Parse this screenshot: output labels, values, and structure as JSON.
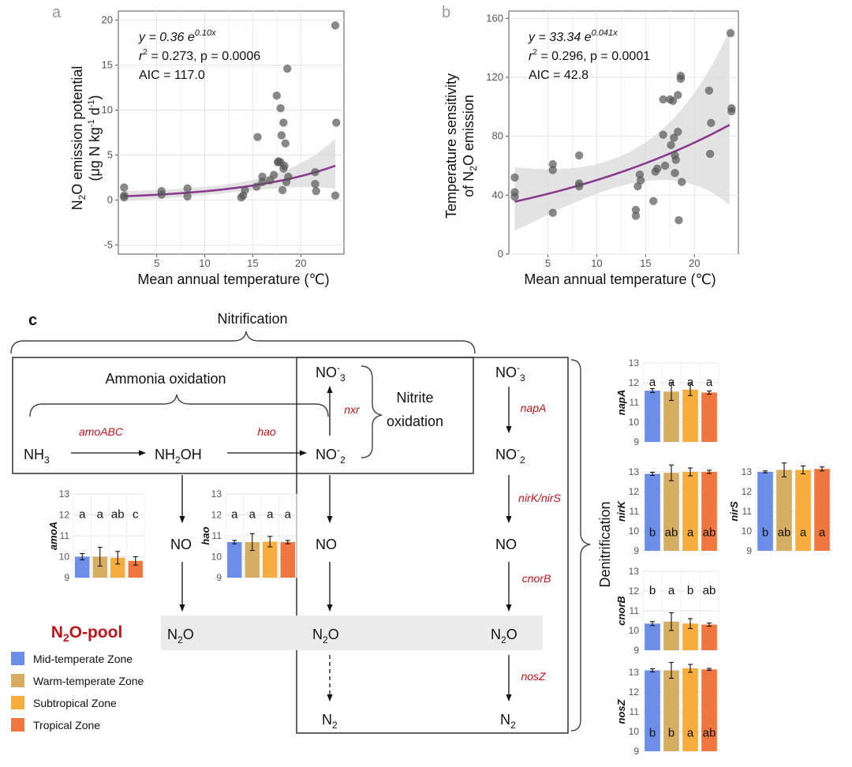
{
  "colors": {
    "mid": "#6c8ee8",
    "warm": "#d7ad63",
    "sub": "#f6ad3e",
    "trop": "#f0763f",
    "fit_line": "#8a3b8f",
    "gene_red": "#c0141c",
    "pool_title": "#c0141c",
    "band": "#ebebeb"
  },
  "panel_a": {
    "letter": "a",
    "eq_y": "y = 0.36 e",
    "eq_exp": "0.10x",
    "eq_r2": "r",
    "eq_r2_rest": " = 0.273, p = 0.0006",
    "aic": "AIC = 117.0"
  },
  "panel_b": {
    "letter": "b",
    "eq_y": "y = 33.34 e",
    "eq_exp": "0.041x",
    "eq_r2": "r",
    "eq_r2_rest": " = 0.296, p = 0.0001",
    "aic": "AIC = 42.8"
  },
  "chart_data": [
    {
      "type": "scatter",
      "panel": "a",
      "xlabel": "Mean annual temperature (℃)",
      "ylabel": "N2O emission potential (μg N kg-1 d-1)",
      "xlim": [
        1,
        24.5
      ],
      "ylim": [
        -6,
        21
      ],
      "xticks": [
        5,
        10,
        15,
        20
      ],
      "yticks": [
        -5,
        0,
        5,
        10,
        15,
        20
      ],
      "points": [
        [
          1.6,
          0.5
        ],
        [
          1.6,
          0.3
        ],
        [
          1.6,
          1.4
        ],
        [
          5.5,
          0.6
        ],
        [
          5.5,
          1.0
        ],
        [
          8.2,
          0.4
        ],
        [
          8.2,
          1.3
        ],
        [
          13.8,
          0.3
        ],
        [
          14.0,
          0.5
        ],
        [
          14.2,
          1.1
        ],
        [
          15.4,
          1.5
        ],
        [
          15.5,
          7.0
        ],
        [
          16.0,
          2.0
        ],
        [
          16.0,
          2.6
        ],
        [
          16.8,
          2.2
        ],
        [
          17.2,
          2.8
        ],
        [
          17.5,
          11.6
        ],
        [
          17.6,
          4.2
        ],
        [
          17.7,
          4.3
        ],
        [
          17.9,
          4.2
        ],
        [
          17.9,
          10.2
        ],
        [
          18.0,
          7.2
        ],
        [
          18.1,
          1.1
        ],
        [
          18.2,
          3.5
        ],
        [
          18.2,
          8.6
        ],
        [
          18.3,
          3.8
        ],
        [
          18.4,
          6.3
        ],
        [
          18.5,
          2.0
        ],
        [
          18.6,
          14.6
        ],
        [
          18.7,
          2.6
        ],
        [
          21.5,
          3.1
        ],
        [
          21.5,
          1.8
        ],
        [
          21.6,
          1.0
        ],
        [
          23.6,
          19.4
        ],
        [
          23.7,
          8.6
        ],
        [
          23.6,
          0.5
        ]
      ],
      "fit": {
        "a": 0.36,
        "b": 0.1
      }
    },
    {
      "type": "scatter",
      "panel": "b",
      "xlabel": "Mean annual temperature (℃)",
      "ylabel": "Temperature sensitivity of N2O emission",
      "xlim": [
        1,
        24.5
      ],
      "ylim": [
        0,
        165
      ],
      "xticks": [
        5,
        10,
        15,
        20
      ],
      "yticks": [
        0,
        40,
        80,
        120,
        160
      ],
      "points": [
        [
          1.6,
          52
        ],
        [
          1.6,
          42
        ],
        [
          1.6,
          39
        ],
        [
          5.5,
          61
        ],
        [
          5.5,
          57
        ],
        [
          5.5,
          28
        ],
        [
          8.2,
          67
        ],
        [
          8.2,
          48
        ],
        [
          8.2,
          46
        ],
        [
          14.0,
          30
        ],
        [
          14.0,
          26
        ],
        [
          14.2,
          46
        ],
        [
          14.4,
          54
        ],
        [
          14.5,
          50
        ],
        [
          15.8,
          36
        ],
        [
          16.0,
          56
        ],
        [
          16.2,
          58
        ],
        [
          16.8,
          105
        ],
        [
          16.8,
          81
        ],
        [
          17.0,
          60
        ],
        [
          17.5,
          105
        ],
        [
          17.6,
          74
        ],
        [
          17.8,
          104
        ],
        [
          17.9,
          79
        ],
        [
          18.0,
          67
        ],
        [
          18.0,
          55
        ],
        [
          18.1,
          64
        ],
        [
          18.3,
          108
        ],
        [
          18.3,
          83
        ],
        [
          18.4,
          23
        ],
        [
          18.6,
          121
        ],
        [
          18.6,
          119
        ],
        [
          18.7,
          49
        ],
        [
          21.5,
          111
        ],
        [
          21.6,
          68
        ],
        [
          21.7,
          89
        ],
        [
          23.7,
          150
        ],
        [
          23.8,
          99
        ],
        [
          23.8,
          97
        ]
      ],
      "fit": {
        "a": 33.34,
        "b": 0.041
      }
    },
    {
      "type": "bar",
      "gene": "amoA",
      "ylim": [
        9,
        13
      ],
      "series": [
        "Mid-temperate Zone",
        "Warm-temperate Zone",
        "Subtropical Zone",
        "Tropical Zone"
      ],
      "values": [
        10.0,
        10.0,
        9.95,
        9.8
      ],
      "errors": [
        0.15,
        0.45,
        0.3,
        0.2
      ],
      "letters": [
        "a",
        "a",
        "ab",
        "c"
      ],
      "letter_pos": "top"
    },
    {
      "type": "bar",
      "gene": "hao",
      "ylim": [
        9,
        13
      ],
      "series": [
        "Mid-temperate Zone",
        "Warm-temperate Zone",
        "Subtropical Zone",
        "Tropical Zone"
      ],
      "values": [
        10.7,
        10.7,
        10.72,
        10.7
      ],
      "errors": [
        0.08,
        0.4,
        0.25,
        0.08
      ],
      "letters": [
        "a",
        "a",
        "a",
        "a"
      ],
      "letter_pos": "top"
    },
    {
      "type": "bar",
      "gene": "napA",
      "ylim": [
        9,
        13
      ],
      "series": [
        "Mid-temperate Zone",
        "Warm-temperate Zone",
        "Subtropical Zone",
        "Tropical Zone"
      ],
      "values": [
        11.6,
        11.55,
        11.65,
        11.5
      ],
      "errors": [
        0.1,
        0.45,
        0.3,
        0.08
      ],
      "letters": [
        "a",
        "a",
        "a",
        "a"
      ],
      "letter_pos": "top"
    },
    {
      "type": "bar",
      "gene": "nirK",
      "ylim": [
        9,
        13
      ],
      "series": [
        "Mid-temperate Zone",
        "Warm-temperate Zone",
        "Subtropical Zone",
        "Tropical Zone"
      ],
      "values": [
        12.9,
        12.95,
        13.0,
        13.0
      ],
      "errors": [
        0.08,
        0.4,
        0.2,
        0.08
      ],
      "letters": [
        "b",
        "ab",
        "a",
        "ab"
      ],
      "letter_pos": "bottom"
    },
    {
      "type": "bar",
      "gene": "nirS",
      "ylim": [
        9,
        13
      ],
      "series": [
        "Mid-temperate Zone",
        "Warm-temperate Zone",
        "Subtropical Zone",
        "Tropical Zone"
      ],
      "values": [
        13.0,
        13.1,
        13.1,
        13.15
      ],
      "errors": [
        0.05,
        0.35,
        0.2,
        0.1
      ],
      "letters": [
        "b",
        "ab",
        "a",
        "a"
      ],
      "letter_pos": "bottom"
    },
    {
      "type": "bar",
      "gene": "cnorB",
      "ylim": [
        9,
        13
      ],
      "series": [
        "Mid-temperate Zone",
        "Warm-temperate Zone",
        "Subtropical Zone",
        "Tropical Zone"
      ],
      "values": [
        10.35,
        10.45,
        10.35,
        10.3
      ],
      "errors": [
        0.1,
        0.45,
        0.25,
        0.08
      ],
      "letters": [
        "b",
        "a",
        "b",
        "ab"
      ],
      "letter_pos": "top"
    },
    {
      "type": "bar",
      "gene": "nosZ",
      "ylim": [
        9,
        13
      ],
      "series": [
        "Mid-temperate Zone",
        "Warm-temperate Zone",
        "Subtropical Zone",
        "Tropical Zone"
      ],
      "values": [
        13.1,
        13.1,
        13.2,
        13.15
      ],
      "errors": [
        0.08,
        0.4,
        0.2,
        0.05
      ],
      "letters": [
        "b",
        "b",
        "a",
        "ab"
      ],
      "letter_pos": "bottom"
    }
  ],
  "panel_c": {
    "letter": "c",
    "nitrification": "Nitrification",
    "ammonia_oxidation": "Ammonia oxidation",
    "nitrite_oxidation_1": "Nitrite",
    "nitrite_oxidation_2": "oxidation",
    "denitrification": "Denitrification",
    "pool_title": "N₂O-pool",
    "genes": {
      "amoABC": "amoABC",
      "hao": "hao",
      "nxr": "nxr",
      "napA": "napA",
      "nirKS": "nirK/nirS",
      "cnorB": "cnorB",
      "nosZ": "nosZ"
    },
    "legend": [
      {
        "label": "Mid-temperate Zone",
        "color": "#6c8ee8"
      },
      {
        "label": "Warm-temperate Zone",
        "color": "#d7ad63"
      },
      {
        "label": "Subtropical Zone",
        "color": "#f6ad3e"
      },
      {
        "label": "Tropical Zone",
        "color": "#f0763f"
      }
    ]
  }
}
